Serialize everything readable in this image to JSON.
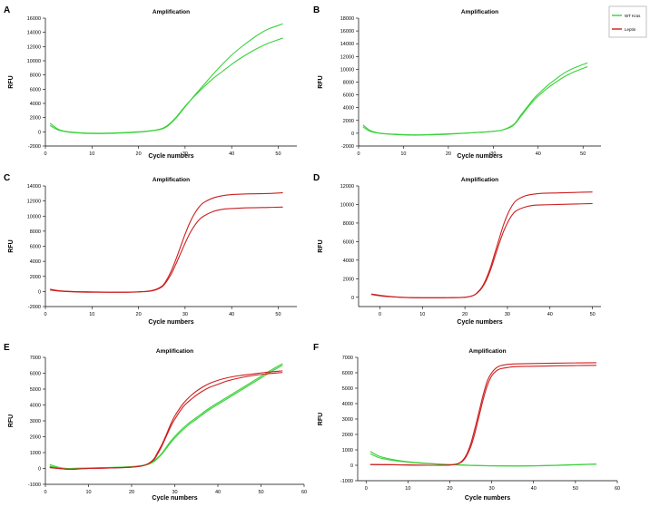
{
  "legend": {
    "items": [
      {
        "label": "WT Kras",
        "color": "#3ad13a"
      },
      {
        "label": "Leptin",
        "color": "#cc1f1f"
      }
    ]
  },
  "chart_data": [
    {
      "letter": "A",
      "type": "line",
      "title": "Amplification",
      "xlabel": "Cycle numbers",
      "ylabel": "RFU",
      "xlim": [
        0,
        54
      ],
      "ylim": [
        -2000,
        16000
      ],
      "xticks": [
        0,
        10,
        20,
        30,
        40,
        50
      ],
      "yticks": [
        -2000,
        0,
        2000,
        4000,
        6000,
        8000,
        10000,
        12000,
        14000,
        16000
      ],
      "series": [
        {
          "name": "WT Kras",
          "color": "#3ad13a",
          "x": [
            1,
            2,
            3,
            5,
            8,
            11,
            15,
            20,
            24,
            26,
            28,
            30,
            32,
            34,
            36,
            38,
            40,
            42,
            44,
            46,
            48,
            51
          ],
          "y": [
            1200,
            700,
            300,
            0,
            -150,
            -200,
            -150,
            0,
            300,
            800,
            2000,
            3600,
            5000,
            6300,
            7500,
            8500,
            9500,
            10400,
            11200,
            11900,
            12500,
            13200
          ]
        },
        {
          "name": "WT Kras",
          "color": "#3ad13a",
          "x": [
            1,
            2,
            3,
            5,
            8,
            11,
            15,
            20,
            24,
            26,
            28,
            30,
            32,
            34,
            36,
            38,
            40,
            42,
            44,
            46,
            48,
            51
          ],
          "y": [
            900,
            500,
            200,
            -50,
            -200,
            -250,
            -200,
            -50,
            250,
            700,
            1900,
            3500,
            5100,
            6600,
            8100,
            9500,
            10800,
            11900,
            12900,
            13800,
            14500,
            15200
          ]
        }
      ]
    },
    {
      "letter": "B",
      "type": "line",
      "title": "Amplification",
      "xlabel": "Cycle numbers",
      "ylabel": "RFU",
      "xlim": [
        0,
        54
      ],
      "ylim": [
        -2000,
        18000
      ],
      "xticks": [
        0,
        10,
        20,
        30,
        40,
        50
      ],
      "yticks": [
        -2000,
        0,
        2000,
        4000,
        6000,
        8000,
        10000,
        12000,
        14000,
        16000,
        18000
      ],
      "series": [
        {
          "name": "WT Kras",
          "color": "#3ad13a",
          "x": [
            1,
            2,
            3,
            5,
            8,
            12,
            16,
            20,
            26,
            30,
            32,
            34,
            35,
            36,
            37,
            38,
            39,
            40,
            42,
            44,
            46,
            48,
            51
          ],
          "y": [
            1300,
            700,
            300,
            0,
            -150,
            -250,
            -200,
            -100,
            100,
            300,
            500,
            1000,
            1600,
            2500,
            3400,
            4300,
            5100,
            5800,
            7000,
            8000,
            8900,
            9600,
            10400
          ]
        },
        {
          "name": "WT Kras",
          "color": "#3ad13a",
          "x": [
            1,
            2,
            3,
            5,
            8,
            12,
            16,
            20,
            26,
            30,
            32,
            34,
            35,
            36,
            37,
            38,
            39,
            40,
            42,
            44,
            46,
            48,
            51
          ],
          "y": [
            1000,
            500,
            200,
            -50,
            -200,
            -300,
            -250,
            -150,
            100,
            300,
            500,
            1100,
            1700,
            2700,
            3600,
            4500,
            5400,
            6100,
            7400,
            8500,
            9500,
            10200,
            11000
          ]
        }
      ]
    },
    {
      "letter": "C",
      "type": "line",
      "title": "Amplification",
      "xlabel": "Cycle numbers",
      "ylabel": "RFU",
      "xlim": [
        0,
        54
      ],
      "ylim": [
        -2000,
        14000
      ],
      "xticks": [
        0,
        10,
        20,
        30,
        40,
        50
      ],
      "yticks": [
        -2000,
        0,
        2000,
        4000,
        6000,
        8000,
        10000,
        12000,
        14000
      ],
      "series": [
        {
          "name": "Leptin",
          "color": "#cc1f1f",
          "x": [
            1,
            3,
            6,
            10,
            15,
            20,
            23,
            25,
            26,
            27,
            28,
            29,
            30,
            31,
            32,
            33,
            34,
            36,
            38,
            40,
            44,
            48,
            51
          ],
          "y": [
            200,
            50,
            -50,
            -100,
            -100,
            -50,
            100,
            600,
            1300,
            2300,
            3600,
            5000,
            6400,
            7700,
            8700,
            9500,
            10000,
            10600,
            10900,
            11000,
            11100,
            11150,
            11200
          ]
        },
        {
          "name": "Leptin",
          "color": "#cc1f1f",
          "x": [
            1,
            3,
            6,
            10,
            15,
            20,
            23,
            25,
            26,
            27,
            28,
            29,
            30,
            31,
            32,
            33,
            34,
            36,
            38,
            40,
            44,
            48,
            51
          ],
          "y": [
            300,
            100,
            0,
            -50,
            -100,
            -50,
            150,
            700,
            1500,
            2700,
            4200,
            5900,
            7600,
            9100,
            10300,
            11200,
            11800,
            12400,
            12700,
            12850,
            12950,
            13000,
            13100
          ]
        }
      ]
    },
    {
      "letter": "D",
      "type": "line",
      "title": "Amplification",
      "xlabel": "Cycle numbers",
      "ylabel": "RFU",
      "xlim": [
        -5,
        52
      ],
      "ylim": [
        -1000,
        12000
      ],
      "xticks": [
        0,
        10,
        20,
        30,
        40,
        50
      ],
      "yticks": [
        0,
        2000,
        4000,
        6000,
        8000,
        10000,
        12000
      ],
      "series": [
        {
          "name": "Leptin",
          "color": "#cc1f1f",
          "x": [
            -2,
            1,
            5,
            10,
            15,
            20,
            22,
            23,
            24,
            25,
            26,
            27,
            28,
            29,
            30,
            31,
            32,
            34,
            36,
            38,
            42,
            46,
            50
          ],
          "y": [
            300,
            100,
            0,
            -50,
            -50,
            0,
            200,
            500,
            1000,
            1800,
            2900,
            4300,
            5700,
            7000,
            8000,
            8800,
            9300,
            9700,
            9900,
            9950,
            10000,
            10050,
            10100
          ]
        },
        {
          "name": "Leptin",
          "color": "#cc1f1f",
          "x": [
            -2,
            1,
            5,
            10,
            15,
            20,
            22,
            23,
            24,
            25,
            26,
            27,
            28,
            29,
            30,
            31,
            32,
            34,
            36,
            38,
            42,
            46,
            50
          ],
          "y": [
            350,
            150,
            0,
            -50,
            -50,
            0,
            200,
            550,
            1100,
            2000,
            3200,
            4700,
            6200,
            7700,
            8900,
            9800,
            10400,
            10900,
            11100,
            11200,
            11250,
            11300,
            11350
          ]
        }
      ]
    },
    {
      "letter": "E",
      "type": "line",
      "title": "Amplification",
      "xlabel": "Cycle numbers",
      "ylabel": "RFU",
      "xlim": [
        0,
        60
      ],
      "ylim": [
        -1000,
        7000
      ],
      "xticks": [
        0,
        10,
        20,
        30,
        40,
        50,
        60
      ],
      "yticks": [
        -1000,
        0,
        1000,
        2000,
        3000,
        4000,
        5000,
        6000,
        7000
      ],
      "series": [
        {
          "name": "WT Kras",
          "color": "#3ad13a",
          "x": [
            1,
            3,
            5,
            10,
            15,
            20,
            23,
            25,
            27,
            29,
            31,
            33,
            35,
            38,
            41,
            44,
            47,
            50,
            53,
            55
          ],
          "y": [
            250,
            80,
            0,
            20,
            50,
            100,
            200,
            400,
            900,
            1600,
            2200,
            2700,
            3100,
            3700,
            4200,
            4700,
            5200,
            5700,
            6200,
            6500
          ]
        },
        {
          "name": "WT Kras",
          "color": "#3ad13a",
          "x": [
            1,
            3,
            5,
            10,
            15,
            20,
            23,
            25,
            27,
            29,
            31,
            33,
            35,
            38,
            41,
            44,
            47,
            50,
            53,
            55
          ],
          "y": [
            150,
            40,
            0,
            30,
            60,
            120,
            220,
            450,
            950,
            1700,
            2300,
            2800,
            3200,
            3800,
            4300,
            4800,
            5300,
            5800,
            6300,
            6600
          ]
        },
        {
          "name": "Leptin",
          "color": "#cc1f1f",
          "x": [
            1,
            3,
            6,
            10,
            15,
            20,
            23,
            25,
            26,
            27,
            28,
            29,
            30,
            32,
            34,
            36,
            38,
            40,
            42,
            45,
            48,
            51,
            55
          ],
          "y": [
            50,
            0,
            -50,
            0,
            30,
            80,
            200,
            500,
            900,
            1400,
            2000,
            2600,
            3100,
            3900,
            4400,
            4800,
            5100,
            5300,
            5500,
            5700,
            5850,
            5950,
            6050
          ]
        },
        {
          "name": "Leptin",
          "color": "#cc1f1f",
          "x": [
            1,
            3,
            6,
            10,
            15,
            20,
            23,
            25,
            26,
            27,
            28,
            29,
            30,
            32,
            34,
            36,
            38,
            40,
            42,
            45,
            48,
            51,
            55
          ],
          "y": [
            80,
            0,
            -50,
            0,
            30,
            80,
            200,
            550,
            1000,
            1500,
            2100,
            2750,
            3300,
            4100,
            4650,
            5050,
            5350,
            5550,
            5700,
            5850,
            5950,
            6050,
            6150
          ]
        }
      ]
    },
    {
      "letter": "F",
      "type": "line",
      "title": "Amplification",
      "xlabel": "Cycle numbers",
      "ylabel": "RFU",
      "xlim": [
        -2,
        60
      ],
      "ylim": [
        -1000,
        7000
      ],
      "xticks": [
        0,
        10,
        20,
        30,
        40,
        50,
        60
      ],
      "yticks": [
        -1000,
        0,
        1000,
        2000,
        3000,
        4000,
        5000,
        6000,
        7000
      ],
      "series": [
        {
          "name": "WT Kras",
          "color": "#3ad13a",
          "x": [
            1,
            3,
            5,
            8,
            11,
            15,
            20,
            25,
            30,
            35,
            40,
            45,
            50,
            55
          ],
          "y": [
            900,
            600,
            450,
            300,
            200,
            120,
            50,
            0,
            -30,
            -40,
            -30,
            0,
            40,
            80
          ]
        },
        {
          "name": "WT Kras",
          "color": "#3ad13a",
          "x": [
            1,
            3,
            5,
            8,
            11,
            15,
            20,
            25,
            30,
            35,
            40,
            45,
            50,
            55
          ],
          "y": [
            750,
            500,
            380,
            260,
            180,
            100,
            40,
            -10,
            -40,
            -50,
            -40,
            -10,
            30,
            70
          ]
        },
        {
          "name": "Leptin",
          "color": "#cc1f1f",
          "x": [
            1,
            5,
            10,
            15,
            20,
            22,
            23,
            24,
            25,
            26,
            27,
            28,
            29,
            30,
            31,
            32,
            34,
            36,
            40,
            45,
            50,
            55
          ],
          "y": [
            50,
            40,
            20,
            0,
            20,
            100,
            250,
            600,
            1200,
            2100,
            3200,
            4300,
            5200,
            5800,
            6100,
            6250,
            6350,
            6400,
            6420,
            6450,
            6470,
            6480
          ]
        },
        {
          "name": "Leptin",
          "color": "#cc1f1f",
          "x": [
            1,
            5,
            10,
            15,
            20,
            22,
            23,
            24,
            25,
            26,
            27,
            28,
            29,
            30,
            31,
            32,
            34,
            36,
            40,
            45,
            50,
            55
          ],
          "y": [
            50,
            40,
            20,
            0,
            20,
            120,
            300,
            700,
            1400,
            2400,
            3500,
            4600,
            5500,
            6000,
            6300,
            6450,
            6550,
            6580,
            6600,
            6620,
            6640,
            6650
          ]
        }
      ]
    }
  ]
}
